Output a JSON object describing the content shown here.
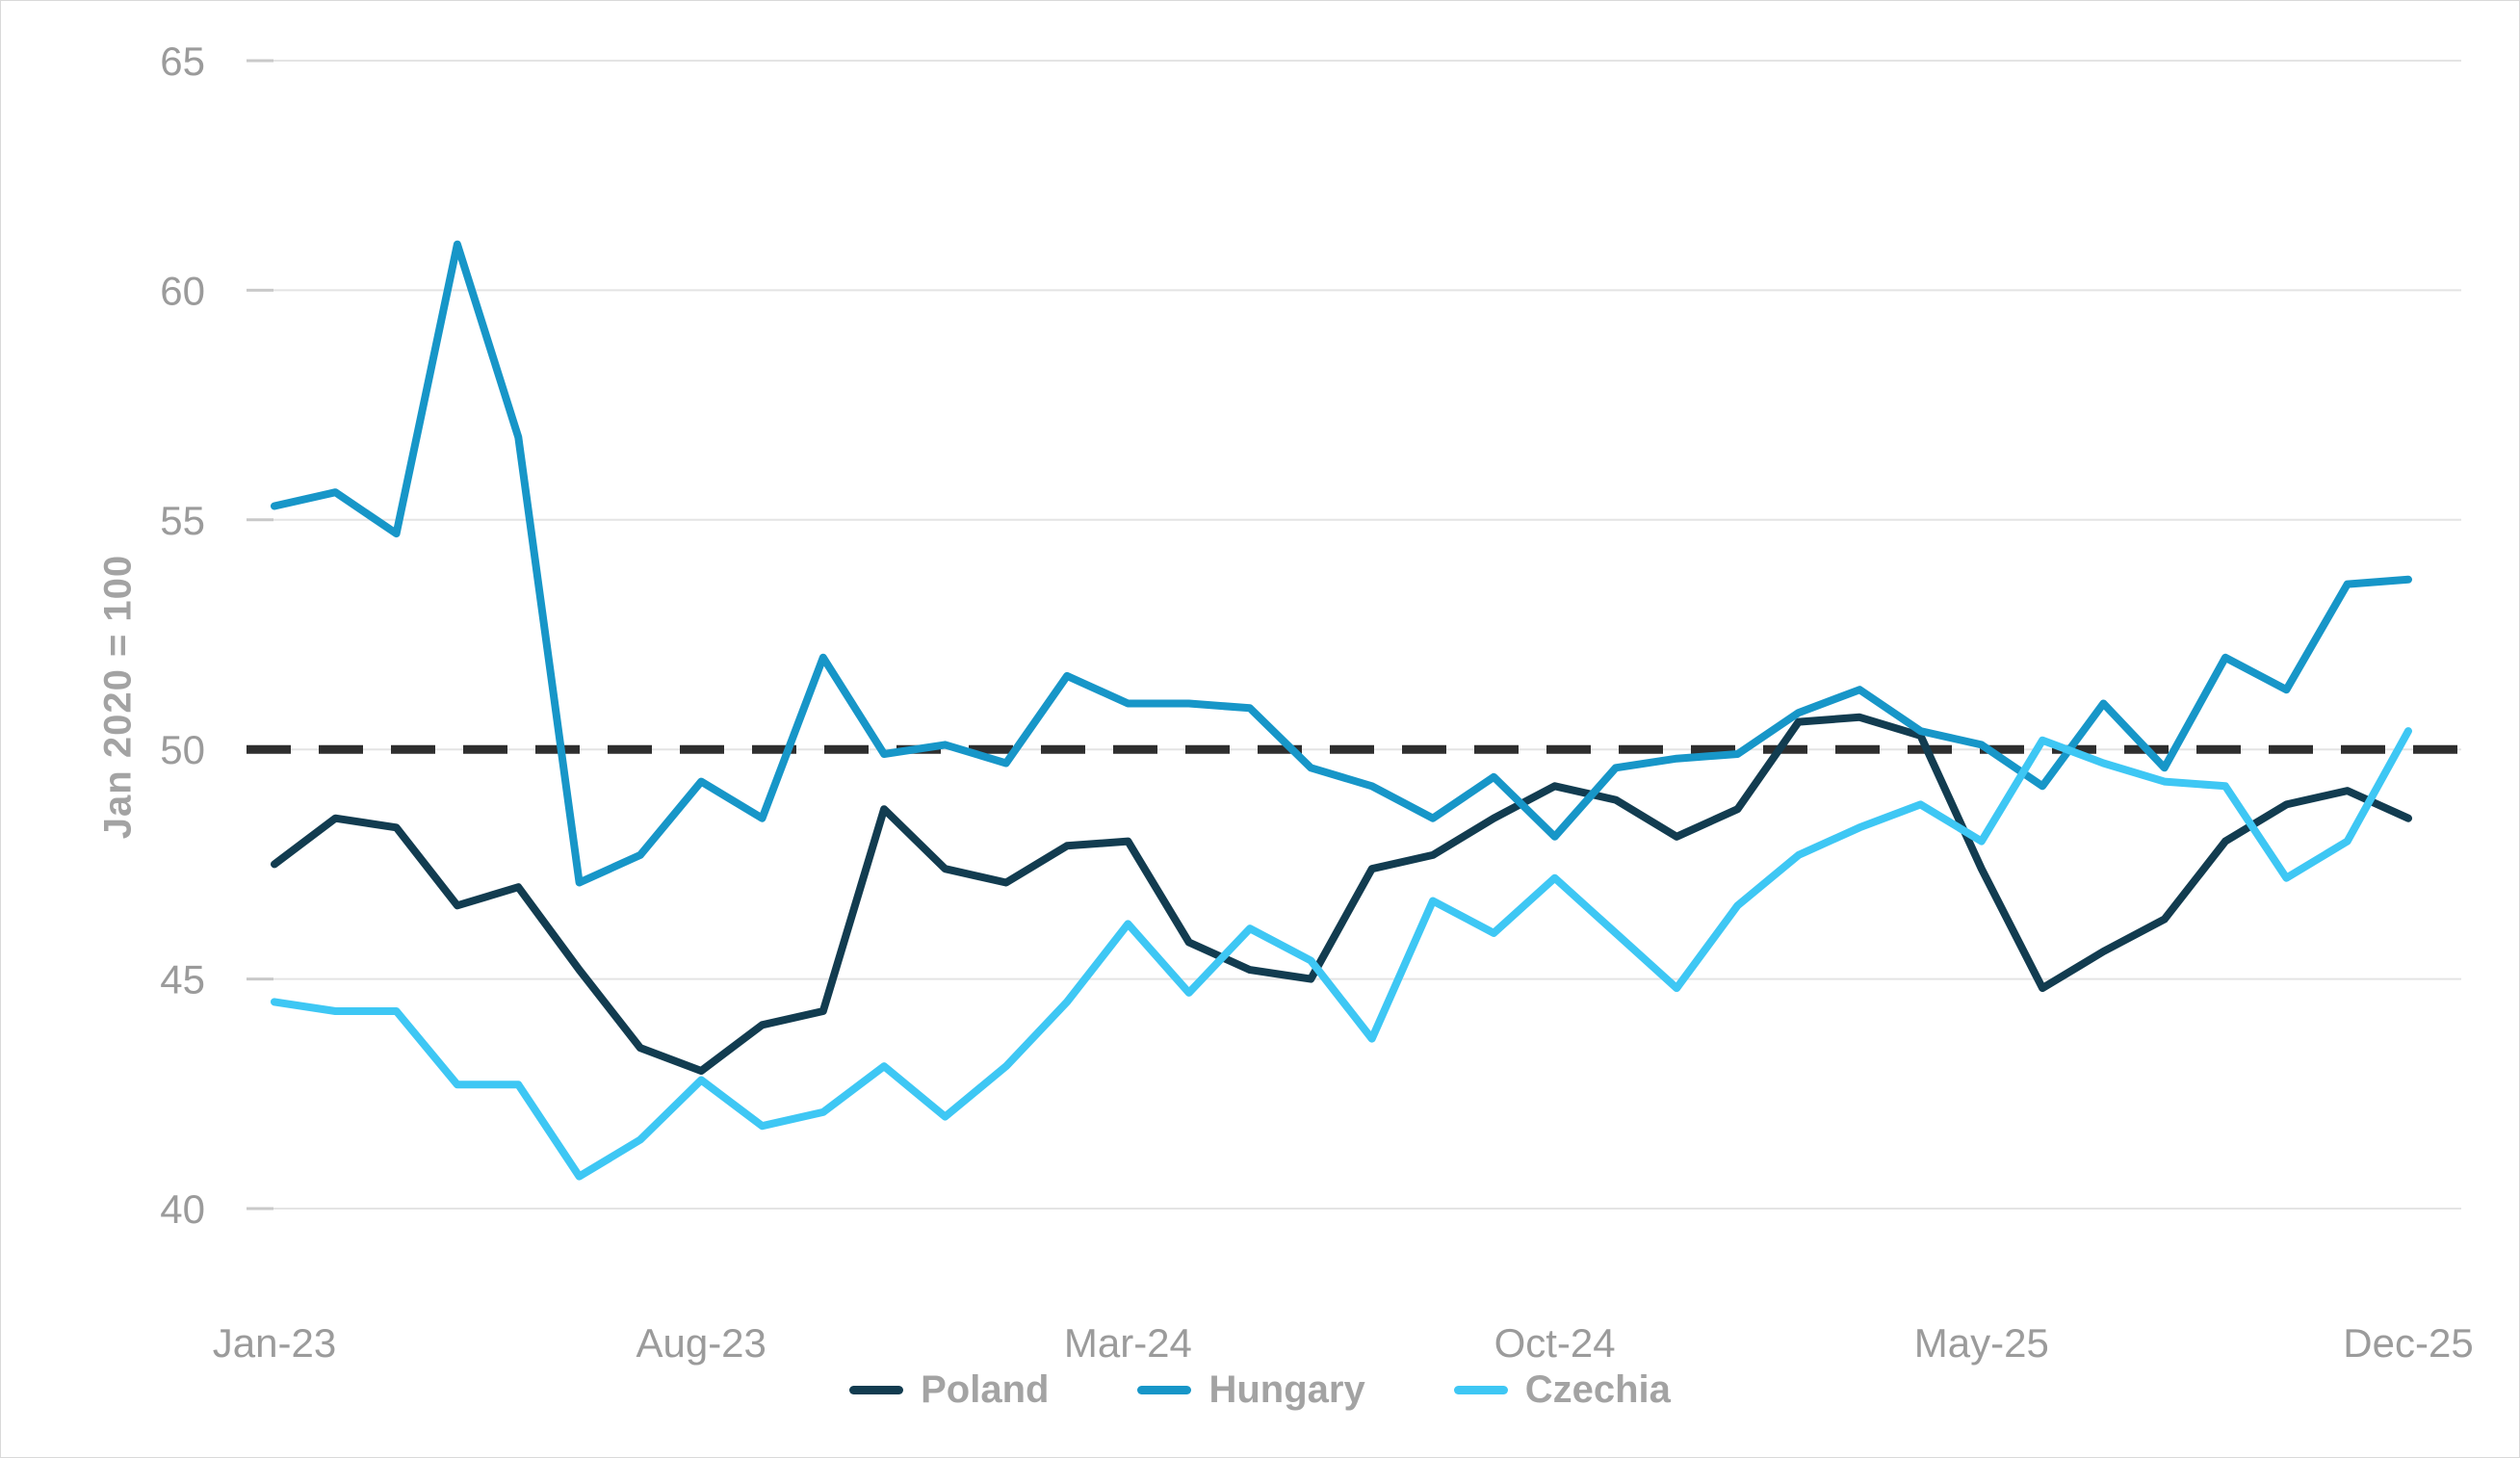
{
  "chart_data": {
    "type": "line",
    "title": "",
    "y_axis": {
      "label": "Jan 2020 = 100",
      "ticks": [
        65,
        60,
        55,
        50,
        45,
        40
      ],
      "min": 40,
      "max": 65,
      "grid": true
    },
    "x_axis": {
      "months": [
        "Jan-23",
        "Feb-23",
        "Mar-23",
        "Apr-23",
        "May-23",
        "Jun-23",
        "Jul-23",
        "Aug-23",
        "Sep-23",
        "Oct-23",
        "Nov-23",
        "Dec-23",
        "Jan-24",
        "Feb-24",
        "Mar-24",
        "Apr-24",
        "May-24",
        "Jun-24",
        "Jul-24",
        "Aug-24",
        "Sep-24",
        "Oct-24",
        "Nov-24",
        "Dec-24",
        "Jan-25",
        "Feb-25",
        "Mar-25",
        "Apr-25",
        "May-25",
        "Jun-25",
        "Jul-25",
        "Aug-25",
        "Sep-25",
        "Oct-25",
        "Nov-25",
        "Dec-25"
      ],
      "tick_positions": [
        0,
        7,
        14,
        21,
        28,
        35
      ],
      "tick_labels": [
        "Jan-23",
        "Aug-23",
        "Mar-24",
        "Oct-24",
        "May-25",
        "Dec-25"
      ]
    },
    "reference_line": {
      "value": 50,
      "style": "dashed",
      "color": "#2e2e2e"
    },
    "legend_position": "bottom",
    "series": [
      {
        "name": "Poland",
        "color": "#123c50",
        "values": [
          47.5,
          48.5,
          48.3,
          46.6,
          47.0,
          45.2,
          43.5,
          43.0,
          44.0,
          44.3,
          48.7,
          47.4,
          47.1,
          47.9,
          48.0,
          45.8,
          45.2,
          45.0,
          47.4,
          47.7,
          48.5,
          49.2,
          48.9,
          48.1,
          48.7,
          50.6,
          50.7,
          50.3,
          47.4,
          44.8,
          45.6,
          46.3,
          48.0,
          48.8,
          49.1,
          48.5
        ]
      },
      {
        "name": "Hungary",
        "color": "#1796c8",
        "values": [
          55.3,
          55.6,
          54.7,
          61.0,
          56.8,
          47.1,
          47.7,
          49.3,
          48.5,
          52.0,
          49.9,
          50.1,
          49.7,
          51.6,
          51.0,
          51.0,
          50.9,
          49.6,
          49.2,
          48.5,
          49.4,
          48.1,
          49.6,
          49.8,
          49.9,
          50.8,
          51.3,
          50.4,
          50.1,
          49.2,
          51.0,
          49.6,
          52.0,
          51.3,
          53.6,
          53.7
        ]
      },
      {
        "name": "Czechia",
        "color": "#3ec7f4",
        "values": [
          44.5,
          44.3,
          44.3,
          42.7,
          42.7,
          40.7,
          41.5,
          42.8,
          41.8,
          42.1,
          43.1,
          42.0,
          43.1,
          44.5,
          46.2,
          44.7,
          46.1,
          45.4,
          43.7,
          46.7,
          46.0,
          47.2,
          46.0,
          44.8,
          46.6,
          47.7,
          48.3,
          48.8,
          48.0,
          50.2,
          49.7,
          49.3,
          49.2,
          47.2,
          48.0,
          50.4
        ]
      }
    ],
    "style": {
      "grid_color": "#e4e4e4",
      "tick_stub_color": "#c9c9c9",
      "tick_label_color": "#9b9b9b",
      "line_width": 8
    }
  }
}
